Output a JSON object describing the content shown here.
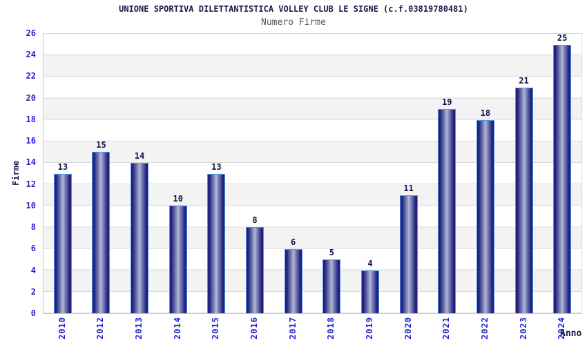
{
  "header": {
    "title": "UNIONE SPORTIVA DILETTANTISTICA VOLLEY CLUB LE SIGNE (c.f.03819780481)",
    "subtitle": "Numero Firme"
  },
  "chart_data": {
    "type": "bar",
    "title": "UNIONE SPORTIVA DILETTANTISTICA VOLLEY CLUB LE SIGNE (c.f.03819780481)",
    "subtitle": "Numero Firme",
    "categories": [
      "2010",
      "2012",
      "2013",
      "2014",
      "2015",
      "2016",
      "2017",
      "2018",
      "2019",
      "2020",
      "2021",
      "2022",
      "2023",
      "2024"
    ],
    "values": [
      13,
      15,
      14,
      10,
      13,
      8,
      6,
      5,
      4,
      11,
      19,
      18,
      21,
      25
    ],
    "xlabel": "Anno",
    "ylabel": "Firme",
    "ylim": [
      0,
      26
    ],
    "y_ticks": [
      0,
      2,
      4,
      6,
      8,
      10,
      12,
      14,
      16,
      18,
      20,
      22,
      24,
      26
    ],
    "grid": "alternating horizontal bands every 2 units, light gridline at each band edge",
    "legend_position": "none",
    "bar_value_labels_shown": true,
    "colors": {
      "bar_dark": "#1d1d76",
      "bar_light": "#b9bedd",
      "bar_border": "#4e96f0",
      "axis_tick_label": "#2323d2",
      "value_label": "#10104a",
      "title": "#1a1a4a",
      "subtitle": "#55555f",
      "band_gray": "#f3f3f3",
      "band_white": "#ffffff",
      "gridline": "#dadada"
    }
  }
}
